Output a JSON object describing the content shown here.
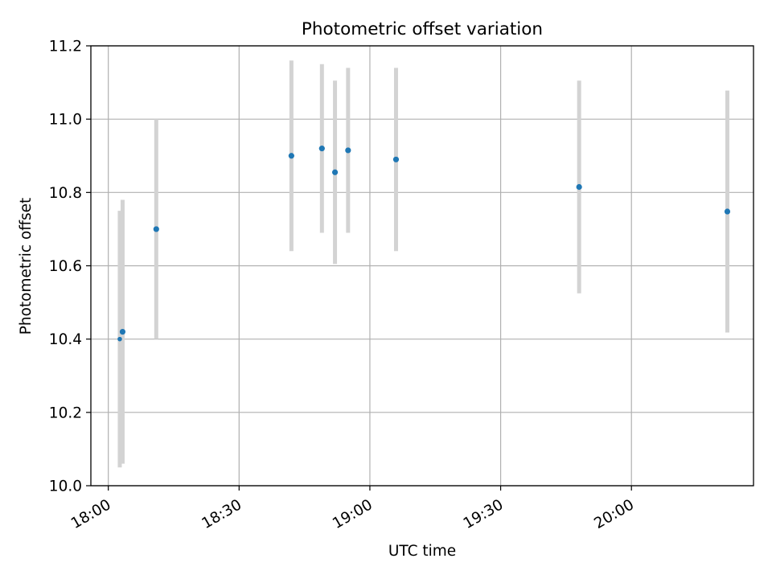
{
  "chart_data": {
    "type": "scatter",
    "title": "Photometric offset variation",
    "xlabel": "UTC time",
    "ylabel": "Photometric offset",
    "x_axis_type": "time",
    "xlim": [
      "17:56",
      "20:28"
    ],
    "ylim": [
      10.0,
      11.2
    ],
    "xticks": [
      "18:00",
      "18:30",
      "19:00",
      "19:30",
      "20:00"
    ],
    "yticks": [
      "10.0",
      "10.2",
      "10.4",
      "10.6",
      "10.8",
      "11.0",
      "11.2"
    ],
    "grid": true,
    "legend": "none",
    "marker_color": "#1f77b4",
    "errorbar_color": "#d3d3d3",
    "points": [
      {
        "x": "18:03",
        "y": 10.4,
        "yerr": 0.35
      },
      {
        "x": "18:03",
        "y": 10.42,
        "yerr": 0.36
      },
      {
        "x": "18:11",
        "y": 10.7,
        "yerr": 0.3
      },
      {
        "x": "18:42",
        "y": 10.9,
        "yerr": 0.26
      },
      {
        "x": "18:49",
        "y": 10.92,
        "yerr": 0.23
      },
      {
        "x": "18:52",
        "y": 10.855,
        "yerr": 0.25
      },
      {
        "x": "18:55",
        "y": 10.915,
        "yerr": 0.225
      },
      {
        "x": "19:06",
        "y": 10.89,
        "yerr": 0.25
      },
      {
        "x": "19:48",
        "y": 10.815,
        "yerr": 0.29
      },
      {
        "x": "20:22",
        "y": 10.748,
        "yerr": 0.33
      }
    ]
  }
}
